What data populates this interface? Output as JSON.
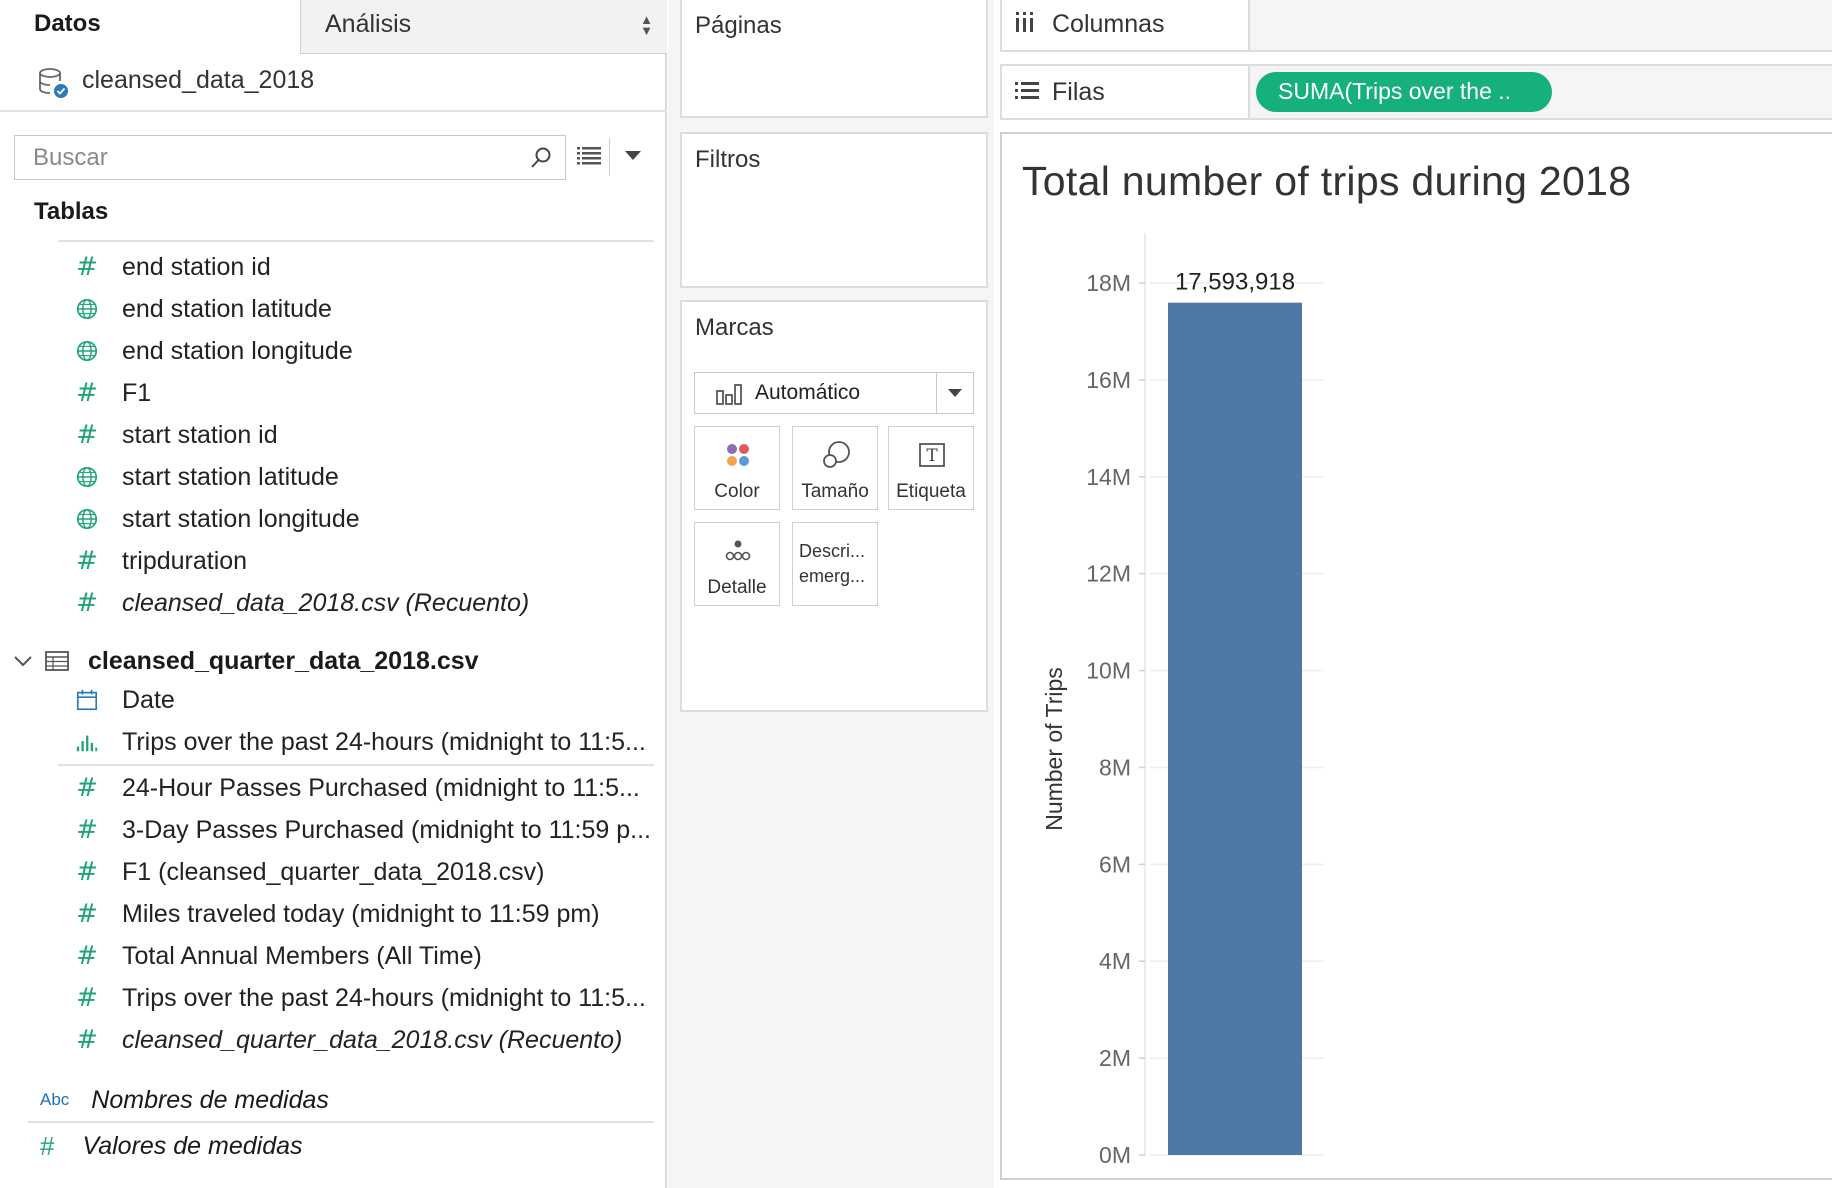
{
  "data_pane": {
    "tab_data": "Datos",
    "tab_analysis": "Análisis",
    "datasource_name": "cleansed_data_2018",
    "search_placeholder": "Buscar",
    "tables_heading": "Tablas",
    "fields_table1": [
      {
        "label": "end station id",
        "icon": "hash-icon",
        "italic": false
      },
      {
        "label": "end station latitude",
        "icon": "globe-icon",
        "italic": false
      },
      {
        "label": "end station longitude",
        "icon": "globe-icon",
        "italic": false
      },
      {
        "label": "F1",
        "icon": "hash-icon",
        "italic": false
      },
      {
        "label": "start station id",
        "icon": "hash-icon",
        "italic": false
      },
      {
        "label": "start station latitude",
        "icon": "globe-icon",
        "italic": false
      },
      {
        "label": "start station longitude",
        "icon": "globe-icon",
        "italic": false
      },
      {
        "label": "tripduration",
        "icon": "hash-icon",
        "italic": false
      },
      {
        "label": "cleansed_data_2018.csv (Recuento)",
        "icon": "hash-icon",
        "italic": true
      }
    ],
    "table2_name": "cleansed_quarter_data_2018.csv",
    "fields_table2": [
      {
        "label": "Date",
        "icon": "calendar-icon",
        "italic": false
      },
      {
        "label": "Trips over the past 24-hours (midnight to 11:5...",
        "icon": "bar-chart-icon",
        "italic": false
      },
      {
        "label": "24-Hour Passes Purchased (midnight to 11:5...",
        "icon": "hash-icon",
        "italic": false
      },
      {
        "label": "3-Day Passes Purchased (midnight to 11:59 p...",
        "icon": "hash-icon",
        "italic": false
      },
      {
        "label": "F1 (cleansed_quarter_data_2018.csv)",
        "icon": "hash-icon",
        "italic": false
      },
      {
        "label": "Miles traveled today (midnight to 11:59 pm)",
        "icon": "hash-icon",
        "italic": false
      },
      {
        "label": "Total Annual Members (All Time)",
        "icon": "hash-icon",
        "italic": false
      },
      {
        "label": "Trips over the past 24-hours (midnight to 11:5...",
        "icon": "hash-icon",
        "italic": false
      },
      {
        "label": "cleansed_quarter_data_2018.csv (Recuento)",
        "icon": "hash-icon",
        "italic": true
      }
    ],
    "measure_names_abbr": "Abc",
    "measure_names": "Nombres de medidas",
    "measure_values": "Valores de medidas"
  },
  "shelves": {
    "pages": "Páginas",
    "filters": "Filtros",
    "marks": "Marcas",
    "mark_type": "Automático",
    "columns": "Columnas",
    "rows": "Filas",
    "rows_pill": "SUMA(Trips over the .."
  },
  "marks_buttons": {
    "color": "Color",
    "size": "Tamaño",
    "label": "Etiqueta",
    "detail": "Detalle",
    "tooltip_line1": "Descri...",
    "tooltip_line2": "emerg..."
  },
  "colors": {
    "accent_green": "#16b07f",
    "bar_blue": "#4e79a7",
    "field_icon_green": "#1fa37a"
  },
  "chart_data": {
    "type": "bar",
    "title": "Total number of trips during 2018",
    "ylabel": "Number of Trips",
    "xlabel": "",
    "categories": [
      ""
    ],
    "values": [
      17593918
    ],
    "data_labels": [
      "17,593,918"
    ],
    "ylim": [
      0,
      18000000
    ],
    "yticks": [
      0,
      2000000,
      4000000,
      6000000,
      8000000,
      10000000,
      12000000,
      14000000,
      16000000,
      18000000
    ],
    "ytick_labels": [
      "0M",
      "2M",
      "4M",
      "6M",
      "8M",
      "10M",
      "12M",
      "14M",
      "16M",
      "18M"
    ]
  }
}
